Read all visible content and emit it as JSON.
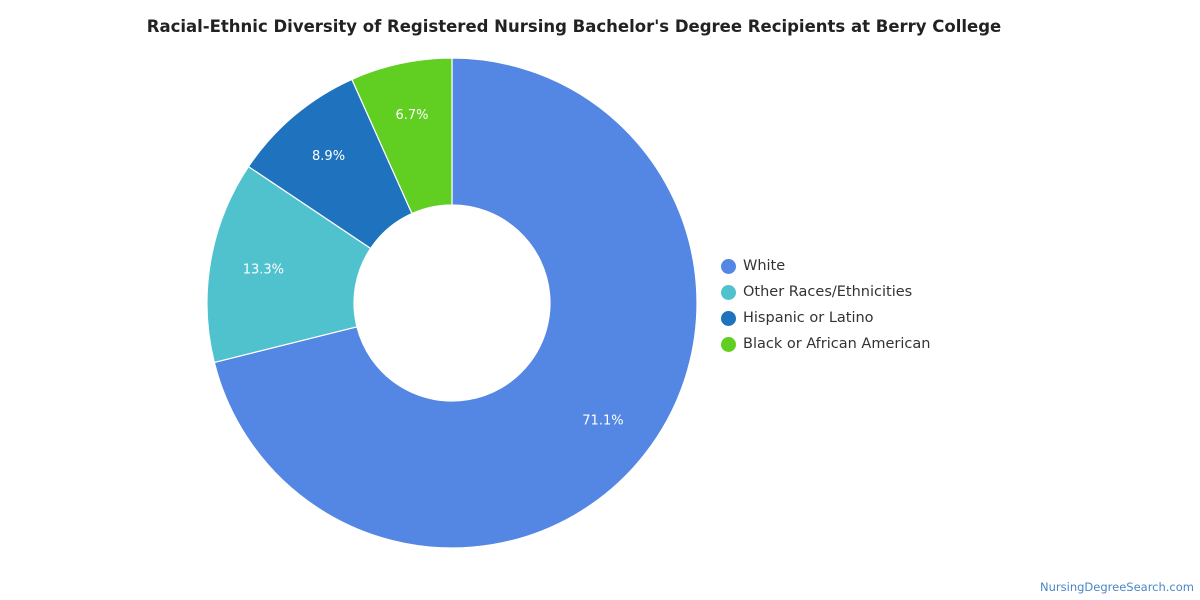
{
  "chart_data": {
    "type": "pie",
    "title": "Racial-Ethnic Diversity of Registered Nursing Bachelor's Degree Recipients at Berry College",
    "donut": true,
    "legend_position": "right",
    "slices": [
      {
        "label": "White",
        "value": 71.1,
        "display": "71.1%",
        "color": "#5486e3"
      },
      {
        "label": "Other Races/Ethnicities",
        "value": 13.3,
        "display": "13.3%",
        "color": "#50c2ce"
      },
      {
        "label": "Hispanic or Latino",
        "value": 8.9,
        "display": "8.9%",
        "color": "#1f72bd"
      },
      {
        "label": "Black or African American",
        "value": 6.7,
        "display": "6.7%",
        "color": "#61ce22"
      }
    ]
  },
  "footer": {
    "credit": "NursingDegreeSearch.com"
  }
}
